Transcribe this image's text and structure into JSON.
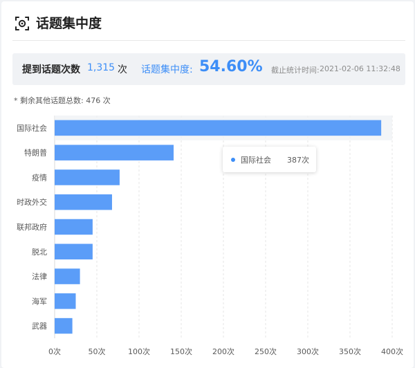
{
  "header": {
    "title": "话题集中度",
    "icon": "topic-target-icon"
  },
  "stats": {
    "mention_label": "提到话题次数",
    "mention_value": "1,315",
    "mention_unit": "次",
    "concentration_label": "话题集中度:",
    "concentration_value": "54.60%",
    "time_label": "截止统计时间:",
    "time_value": "2021-02-06 11:32:48"
  },
  "note": "* 剩余其他话题总数: 476 次",
  "tooltip": {
    "name": "国际社会",
    "value": "387次"
  },
  "colors": {
    "bar": "#5b9df8",
    "accent": "#3d8ef7",
    "highlight": "#f0f2f5"
  },
  "chart_data": {
    "type": "bar",
    "orientation": "horizontal",
    "categories": [
      "国际社会",
      "特朗普",
      "疫情",
      "时政外交",
      "联邦政府",
      "脱北",
      "法律",
      "海军",
      "武器"
    ],
    "values": [
      387,
      141,
      77,
      68,
      45,
      45,
      30,
      25,
      21
    ],
    "xlim": [
      0,
      400
    ],
    "x_ticks": [
      0,
      50,
      100,
      150,
      200,
      250,
      300,
      350,
      400
    ],
    "tick_suffix": "次",
    "grid": "vertical-dashed",
    "highlighted_category": "国际社会"
  }
}
